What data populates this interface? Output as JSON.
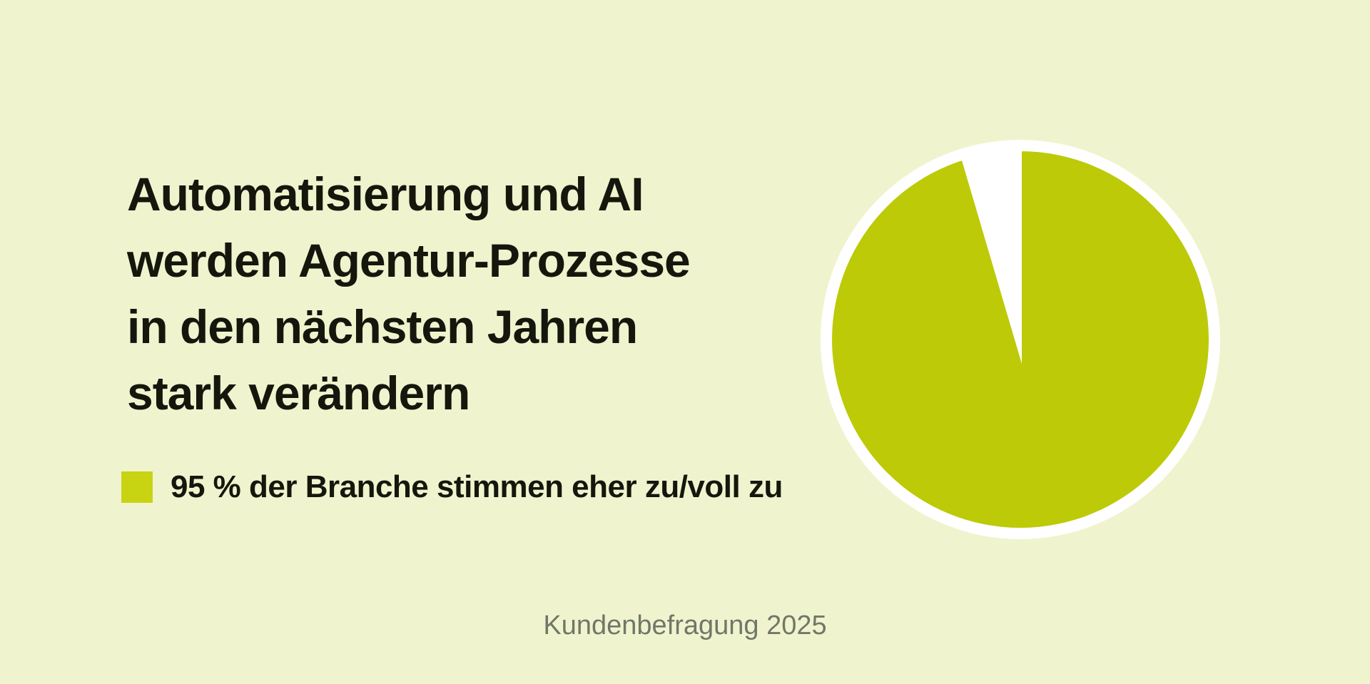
{
  "page": {
    "background_color": "#f0f4ce"
  },
  "headline": {
    "color": "#15170d",
    "lines": [
      "Automatisierung und AI",
      "werden Agentur-Prozesse",
      "in den nächsten Jahren",
      "stark verändern"
    ]
  },
  "legend": {
    "swatch_color": "#c8d412",
    "text_color": "#15170d",
    "label": "95 % der Branche stimmen eher zu/voll zu"
  },
  "footer": {
    "caption": "Kundenbefragung 2025",
    "color": "#717768"
  },
  "chart_data": {
    "type": "pie",
    "title": "Automatisierung und AI werden Agentur-Prozesse in den nächsten Jahren stark verändern",
    "source_caption": "Kundenbefragung 2025",
    "total": 100,
    "slices": [
      {
        "label": "95 % der Branche stimmen eher zu/voll zu",
        "value": 95,
        "color": "#bdca07"
      },
      {
        "label": "",
        "value": 5,
        "color": "#ffffff"
      }
    ],
    "ring_color": "#ffffff",
    "start_angle_deg": 0,
    "direction": "clockwise",
    "gap_position": "counterclockwise-of-12-oclock",
    "legend_position": "left"
  }
}
